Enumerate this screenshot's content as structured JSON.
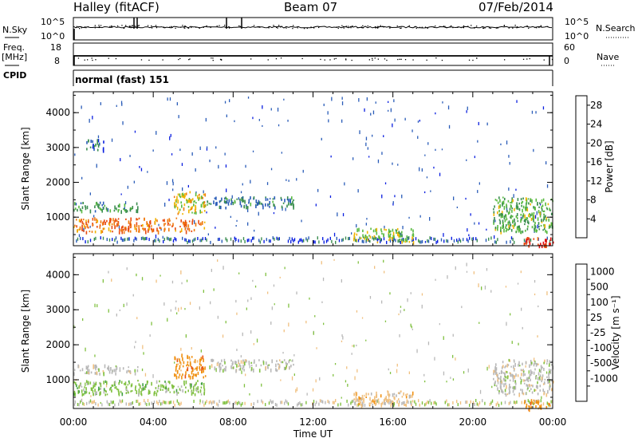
{
  "header": {
    "station": "Halley (fitACF)",
    "beam": "Beam 07",
    "date": "07/Feb/2014"
  },
  "status_panels": {
    "nsky_label": "N.Sky",
    "nsearch_label": "N.Search",
    "nsky_ticks": [
      "10^5",
      "10^0"
    ],
    "nsearch_ticks": [
      "10^5",
      "10^0"
    ],
    "freq_label": "Freq.",
    "freq_unit": "[MHz]",
    "freq_ticks": [
      "18",
      "8"
    ],
    "nave_label": "Nave",
    "nave_ticks": [
      "60",
      "0"
    ],
    "cpid_label": "CPID",
    "cpid_text": "normal (fast) 151"
  },
  "colors": {
    "power": [
      "#0a1fe0",
      "#2a5cb8",
      "#3b8e4f",
      "#58b93f",
      "#f0b400",
      "#f07b10",
      "#e84a10",
      "#e01010"
    ],
    "velocity": [
      "#e01010",
      "#e85010",
      "#f09010",
      "#f0c080",
      "#b8b8b8",
      "#80c040",
      "#40a040",
      "#3a6a8a",
      "#1a2ad0"
    ]
  },
  "chart_data": [
    {
      "type": "heatmap",
      "name": "power",
      "xlabel": "",
      "ylabel": "Slant Range [km]",
      "ylim": [
        180,
        4600
      ],
      "xlim_hours": [
        0,
        24
      ],
      "y_ticks": [
        "1000",
        "2000",
        "3000",
        "4000"
      ],
      "colorbar_label": "Power [dB]",
      "colorbar_ticks": [
        "4",
        "8",
        "12",
        "16",
        "20",
        "24",
        "28"
      ],
      "colorbar_range": [
        0,
        30
      ],
      "echo_regions": [
        {
          "t_start": 0.0,
          "t_end": 6.6,
          "r_start": 600,
          "r_end": 1000,
          "value_db": 22
        },
        {
          "t_start": 0.0,
          "t_end": 3.2,
          "r_start": 1200,
          "r_end": 1450,
          "value_db": 10
        },
        {
          "t_start": 5.0,
          "t_end": 6.6,
          "r_start": 1100,
          "r_end": 1750,
          "value_db": 16
        },
        {
          "t_start": 6.6,
          "t_end": 11.0,
          "r_start": 1300,
          "r_end": 1600,
          "value_db": 8
        },
        {
          "t_start": 0.6,
          "t_end": 1.6,
          "r_start": 2950,
          "r_end": 3250,
          "value_db": 6
        },
        {
          "t_start": 14.0,
          "t_end": 17.0,
          "r_start": 300,
          "r_end": 700,
          "value_db": 14
        },
        {
          "t_start": 21.0,
          "t_end": 24.0,
          "r_start": 600,
          "r_end": 1600,
          "value_db": 12
        },
        {
          "t_start": 22.5,
          "t_end": 24.0,
          "r_start": 180,
          "r_end": 450,
          "value_db": 26
        }
      ]
    },
    {
      "type": "heatmap",
      "name": "velocity",
      "xlabel": "Time UT",
      "ylabel": "Slant Range [km]",
      "ylim": [
        180,
        4600
      ],
      "xlim_hours": [
        0,
        24
      ],
      "x_ticks": [
        "00:00",
        "04:00",
        "08:00",
        "12:00",
        "16:00",
        "20:00",
        "00:00"
      ],
      "y_ticks": [
        "1000",
        "2000",
        "3000",
        "4000"
      ],
      "colorbar_label": "Velocity [m s⁻¹]",
      "colorbar_ticks": [
        "1000",
        "500",
        "100",
        "25",
        "-25",
        "-100",
        "-500",
        "-1000"
      ],
      "echo_regions": [
        {
          "t_start": 0.0,
          "t_end": 6.6,
          "r_start": 600,
          "r_end": 1000,
          "class": 5
        },
        {
          "t_start": 0.0,
          "t_end": 3.2,
          "r_start": 1200,
          "r_end": 1450,
          "class": 4
        },
        {
          "t_start": 5.0,
          "t_end": 6.6,
          "r_start": 1100,
          "r_end": 1750,
          "class": 2
        },
        {
          "t_start": 6.6,
          "t_end": 11.0,
          "r_start": 1300,
          "r_end": 1600,
          "class": 4
        },
        {
          "t_start": 14.0,
          "t_end": 17.0,
          "r_start": 300,
          "r_end": 700,
          "class": 3
        },
        {
          "t_start": 21.0,
          "t_end": 24.0,
          "r_start": 600,
          "r_end": 1600,
          "class": 4
        },
        {
          "t_start": 22.5,
          "t_end": 24.0,
          "r_start": 180,
          "r_end": 450,
          "class": 2
        }
      ]
    }
  ]
}
